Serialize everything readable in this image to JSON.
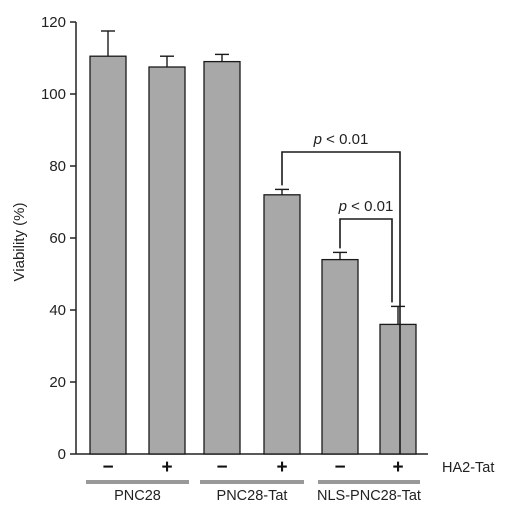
{
  "chart_data": {
    "type": "bar",
    "ylabel": "Viability (%)",
    "ylim": [
      0,
      120
    ],
    "yticks": [
      "0",
      "20",
      "40",
      "60",
      "80",
      "100",
      "120"
    ],
    "categories": [
      "PNC28 −",
      "PNC28 +",
      "PNC28-Tat −",
      "PNC28-Tat +",
      "NLS-PNC28-Tat −",
      "NLS-PNC28-Tat +"
    ],
    "values": [
      110.5,
      107.5,
      109,
      72,
      54,
      36
    ],
    "errors": [
      7,
      3,
      2,
      1.5,
      2,
      5
    ],
    "treatment_signs": [
      "−",
      "+",
      "−",
      "+",
      "−",
      "+"
    ],
    "treatment_label": "HA2-Tat",
    "groups": [
      {
        "label": "PNC28",
        "bars": [
          0,
          1
        ]
      },
      {
        "label": "PNC28-Tat",
        "bars": [
          2,
          3
        ]
      },
      {
        "label": "NLS-PNC28-Tat",
        "bars": [
          4,
          5
        ]
      }
    ],
    "significance": [
      {
        "from": 3,
        "to": 5,
        "p_symbol": "p",
        "text": " < 0.01"
      },
      {
        "from": 4,
        "to": 5,
        "p_symbol": "p",
        "text": " < 0.01"
      }
    ],
    "bar_color": "#a8a8a8",
    "group_line_color": "#999999",
    "grid": false,
    "legend": "none"
  }
}
